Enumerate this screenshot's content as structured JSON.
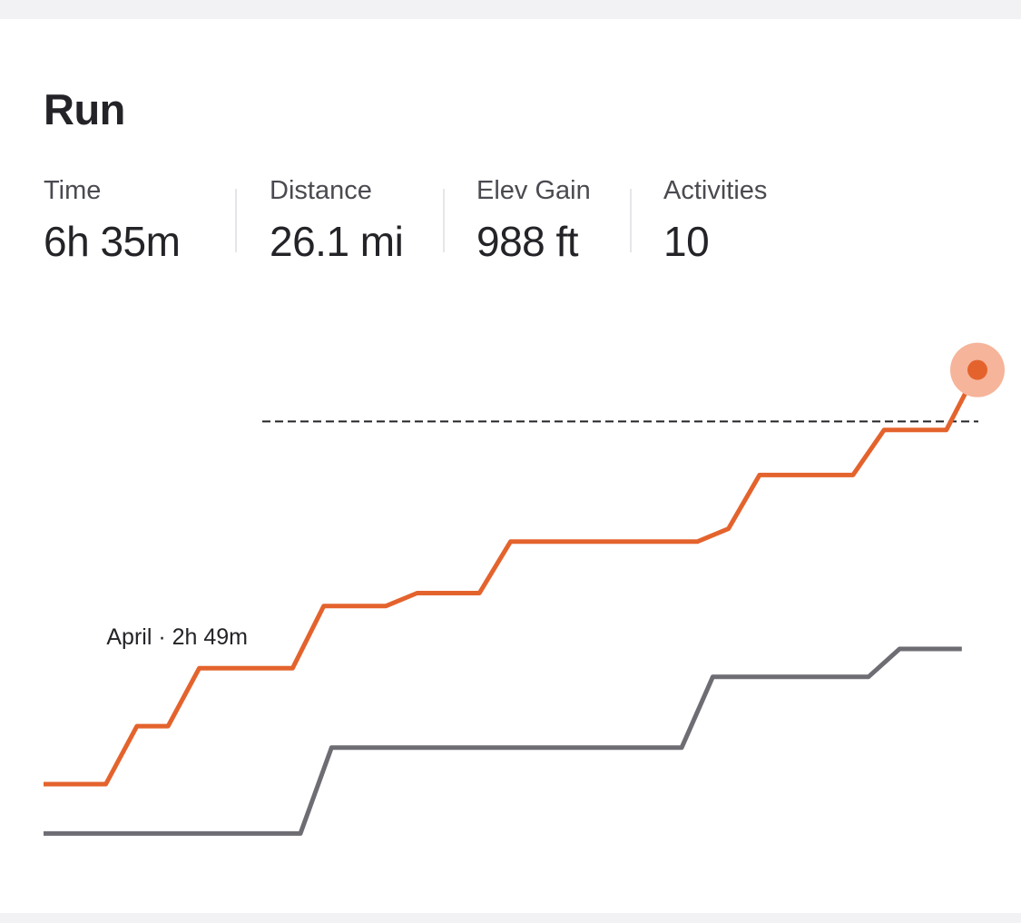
{
  "card": {
    "title": "Run",
    "stats": [
      {
        "label": "Time",
        "value": "6h 35m"
      },
      {
        "label": "Distance",
        "value": "26.1 mi"
      },
      {
        "label": "Elev Gain",
        "value": "988 ft"
      },
      {
        "label": "Activities",
        "value": "10"
      }
    ]
  },
  "colors": {
    "current": "#e4632d",
    "previous": "#6d6d73",
    "highlight": "#f6b49a",
    "reference": "#242428"
  },
  "chart_data": {
    "type": "line",
    "reference_label": "April · 2h 49m",
    "reference_minutes": 169,
    "series": [
      {
        "key": "current",
        "points": [
          [
            0,
            0
          ],
          [
            4,
            0
          ],
          [
            6,
            27
          ],
          [
            8,
            27
          ],
          [
            10,
            54
          ],
          [
            16,
            54
          ],
          [
            18,
            83
          ],
          [
            22,
            83
          ],
          [
            24,
            89
          ],
          [
            28,
            89
          ],
          [
            30,
            113
          ],
          [
            42,
            113
          ],
          [
            44,
            119
          ],
          [
            46,
            144
          ],
          [
            52,
            144
          ],
          [
            54,
            165
          ],
          [
            58,
            165
          ],
          [
            60,
            193
          ]
        ]
      },
      {
        "key": "previous",
        "points": [
          [
            0,
            -23
          ],
          [
            16.5,
            -23
          ],
          [
            18.5,
            17
          ],
          [
            41,
            17
          ],
          [
            43,
            50
          ],
          [
            53,
            50
          ],
          [
            55,
            63
          ],
          [
            59,
            63
          ]
        ]
      }
    ]
  }
}
